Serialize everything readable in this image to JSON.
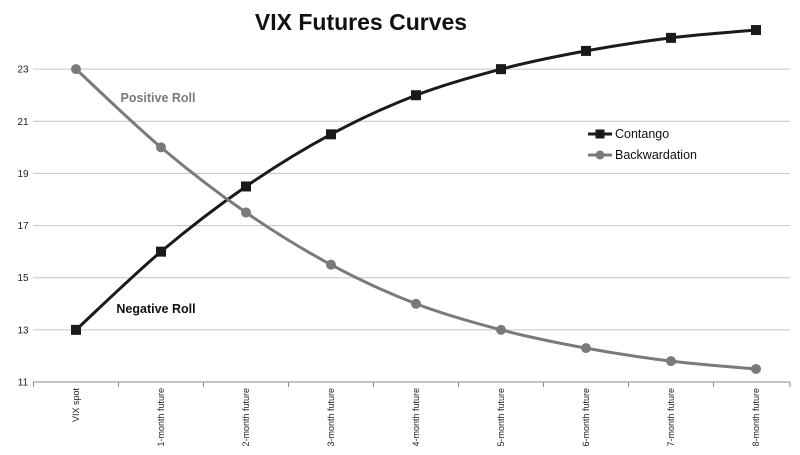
{
  "chart_data": {
    "type": "line",
    "title": "VIX Futures Curves",
    "xlabel": "",
    "ylabel": "",
    "categories": [
      "VIX spot",
      "1-month future",
      "2-month future",
      "3-month future",
      "4-month future",
      "5-month future",
      "6-month future",
      "7-month future",
      "8-month future"
    ],
    "y_ticks": [
      "11",
      "13",
      "15",
      "17",
      "19",
      "21",
      "23"
    ],
    "ylim": [
      11,
      25
    ],
    "grid": true,
    "legend_position": "right",
    "series": [
      {
        "name": "Contango",
        "color": "#1a1a1a",
        "marker": "square",
        "values": [
          13,
          16,
          18.5,
          20.5,
          22,
          23,
          23.7,
          24.2,
          24.5
        ]
      },
      {
        "name": "Backwardation",
        "color": "#7a7a7a",
        "marker": "circle",
        "values": [
          23,
          20,
          17.5,
          15.5,
          14,
          13,
          12.3,
          11.8,
          11.5
        ]
      }
    ],
    "annotations": [
      {
        "text": "Positive Roll",
        "color": "#7a7a7a"
      },
      {
        "text": "Negative Roll",
        "color": "#111111"
      }
    ]
  }
}
